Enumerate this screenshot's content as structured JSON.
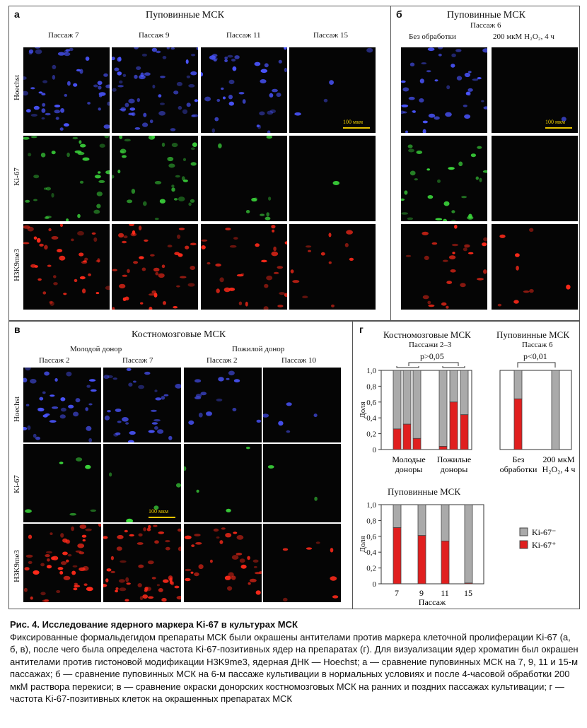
{
  "panels": {
    "a": {
      "letter": "а",
      "title": "Пуповинные МСК",
      "columns": [
        "Пассаж 7",
        "Пассаж 9",
        "Пассаж 11",
        "Пассаж 15"
      ],
      "rows": [
        "Hoechst",
        "Ki-67",
        "H3K9me3"
      ],
      "scale_label": "100 мкм"
    },
    "b": {
      "letter": "б",
      "title": "Пуповинные МСК",
      "subtitle": "Пассаж 6",
      "columns": [
        "Без обработки",
        "200 мкМ H₂O₂, 4 ч"
      ],
      "scale_label": "100 мкм"
    },
    "v": {
      "letter": "в",
      "title": "Костномозговые МСК",
      "groups": [
        "Молодой донор",
        "Пожилой донор"
      ],
      "columns": [
        "Пассаж 2",
        "Пассаж 7",
        "Пассаж 2",
        "Пассаж 10"
      ],
      "rows": [
        "Hoechst",
        "Ki-67",
        "H3K9me3"
      ],
      "scale_label": "100 мкм"
    },
    "g": {
      "letter": "г",
      "bm_title": "Костномозговые МСК",
      "bm_subtitle": "Пассажи 2–3",
      "bm_pvalue": "p>0,05",
      "uc_title": "Пуповинные МСК",
      "uc_subtitle": "Пассаж 6",
      "uc_pvalue": "p<0,01",
      "bottom_title": "Пуповинные МСК"
    }
  },
  "chart_data": [
    {
      "type": "bar",
      "title": "Костномозговые МСК",
      "subtitle": "Пассажи 2–3",
      "ylabel": "Доля",
      "ylim": [
        0,
        1.0
      ],
      "yticks": [
        "0",
        "0,2",
        "0,4",
        "0,6",
        "0,8",
        "1,0"
      ],
      "groups": [
        "Молодые доноры",
        "Пожилые доноры"
      ],
      "series": [
        {
          "name": "Ki-67⁺",
          "color": "#e01f1f",
          "values": [
            [
              0.26,
              0.32,
              0.14
            ],
            [
              0.04,
              0.6,
              0.44
            ]
          ]
        },
        {
          "name": "Ki-67⁻",
          "color": "#aaaaaa",
          "values": [
            [
              0.74,
              0.68,
              0.86
            ],
            [
              0.96,
              0.4,
              0.56
            ]
          ]
        }
      ],
      "annotation": "p>0,05"
    },
    {
      "type": "bar",
      "title": "Пуповинные МСК",
      "subtitle": "Пассаж 6",
      "categories": [
        "Без обработки",
        "200 мкМ H₂O₂, 4 ч"
      ],
      "series": [
        {
          "name": "Ki-67⁺",
          "color": "#e01f1f",
          "values": [
            0.64,
            0.0
          ]
        },
        {
          "name": "Ki-67⁻",
          "color": "#aaaaaa",
          "values": [
            0.36,
            1.0
          ]
        }
      ],
      "annotation": "p<0,01"
    },
    {
      "type": "bar",
      "title": "Пуповинные МСК",
      "xlabel": "Пассаж",
      "ylabel": "Доля",
      "ylim": [
        0,
        1.0
      ],
      "yticks": [
        "0",
        "0,2",
        "0,4",
        "0,6",
        "0,8",
        "1,0"
      ],
      "categories": [
        "7",
        "9",
        "11",
        "15"
      ],
      "series": [
        {
          "name": "Ki-67⁺",
          "color": "#e01f1f",
          "values": [
            0.71,
            0.61,
            0.54,
            0.01
          ]
        },
        {
          "name": "Ki-67⁻",
          "color": "#aaaaaa",
          "values": [
            0.29,
            0.39,
            0.46,
            0.99
          ]
        }
      ],
      "legend": {
        "position": "right",
        "items": [
          "Ki-67⁻",
          "Ki-67⁺"
        ]
      }
    }
  ],
  "caption": {
    "title": "Рис. 4. Исследование ядерного маркера Ki-67 в культурах МСК",
    "text": "Фиксированные формальдегидом препараты МСК были окрашены антителами против маркера клеточной пролиферации Ki-67 (а, б, в), после чего была определена частота Ki-67-позитивных ядер на препаратах (г). Для визуализации ядер хроматин был окрашен антителами против гистоновой модификации H3K9me3, ядерная ДНК — Hoechst; а — сравнение пуповинных МСК на 7, 9, 11 и 15-м пассажах; б — сравнение пуповинных МСК на 6-м пассаже культивации в нормальных условиях и после 4-часовой обработки 200 мкМ раствора перекиси; в — сравнение окраски донорских костномозговых МСК на ранних и поздних пассажах культивации; г — частота Ki-67-позитивных клеток на окрашенных препаратах МСК"
  }
}
